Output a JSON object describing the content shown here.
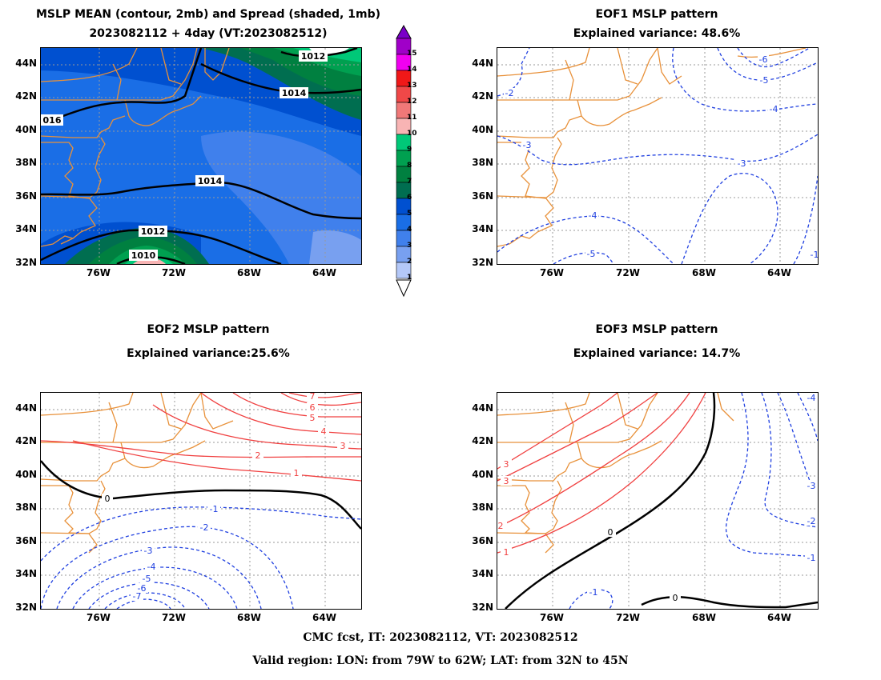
{
  "panels": {
    "mean": {
      "title_line1": "MSLP MEAN (contour, 2mb) and Spread (shaded, 1mb)",
      "title_line2": "2023082112 + 4day (VT:2023082512)",
      "contour_labels": [
        "1012",
        "1014",
        "016",
        "1014",
        "1012",
        "1010"
      ]
    },
    "eof1": {
      "title_line1": "EOF1 MSLP pattern",
      "title_line2": "Explained variance: 48.6%",
      "contour_labels": [
        "-6",
        "-5",
        "-4",
        "-3",
        "-2",
        "-3",
        "-4",
        "-5",
        "-1"
      ]
    },
    "eof2": {
      "title_line1": "EOF2 MSLP pattern",
      "title_line2": "Explained variance:25.6%",
      "contour_labels": [
        "7",
        "6",
        "5",
        "4",
        "3",
        "2",
        "1",
        "0",
        "-1",
        "-2",
        "-3",
        "-4",
        "-5",
        "-6",
        "-7"
      ]
    },
    "eof3": {
      "title_line1": "EOF3 MSLP pattern",
      "title_line2": "Explained variance: 14.7%",
      "contour_labels": [
        "3",
        "3",
        "2",
        "1",
        "0",
        "0",
        "-1",
        "-2",
        "-3",
        "-4",
        "-1"
      ]
    }
  },
  "axes": {
    "lat_labels": [
      "44N",
      "42N",
      "40N",
      "38N",
      "36N",
      "34N",
      "32N"
    ],
    "lon_labels": [
      "76W",
      "72W",
      "68W",
      "64W"
    ]
  },
  "colorbar": {
    "labels": [
      "15",
      "14",
      "13",
      "12",
      "11",
      "10",
      "9",
      "8",
      "7",
      "6",
      "5",
      "4",
      "3",
      "2",
      "1"
    ],
    "colors": [
      "#a000c8",
      "#f000f0",
      "#f01818",
      "#f04848",
      "#f07878",
      "#f8b4b4",
      "#00c878",
      "#00a050",
      "#008040",
      "#006e50",
      "#0050d0",
      "#1a6ee6",
      "#4080ec",
      "#78a0f0",
      "#b4c8f8"
    ]
  },
  "colors": {
    "coast": "#e8913a",
    "positive": "#f04040",
    "negative": "#2040e0",
    "zero": "#000000"
  },
  "footer": {
    "line1": "CMC fcst, IT: 2023082112, VT: 2023082512",
    "line2": "Valid region: LON: from 79W to 62W; LAT: from 32N to 45N"
  }
}
